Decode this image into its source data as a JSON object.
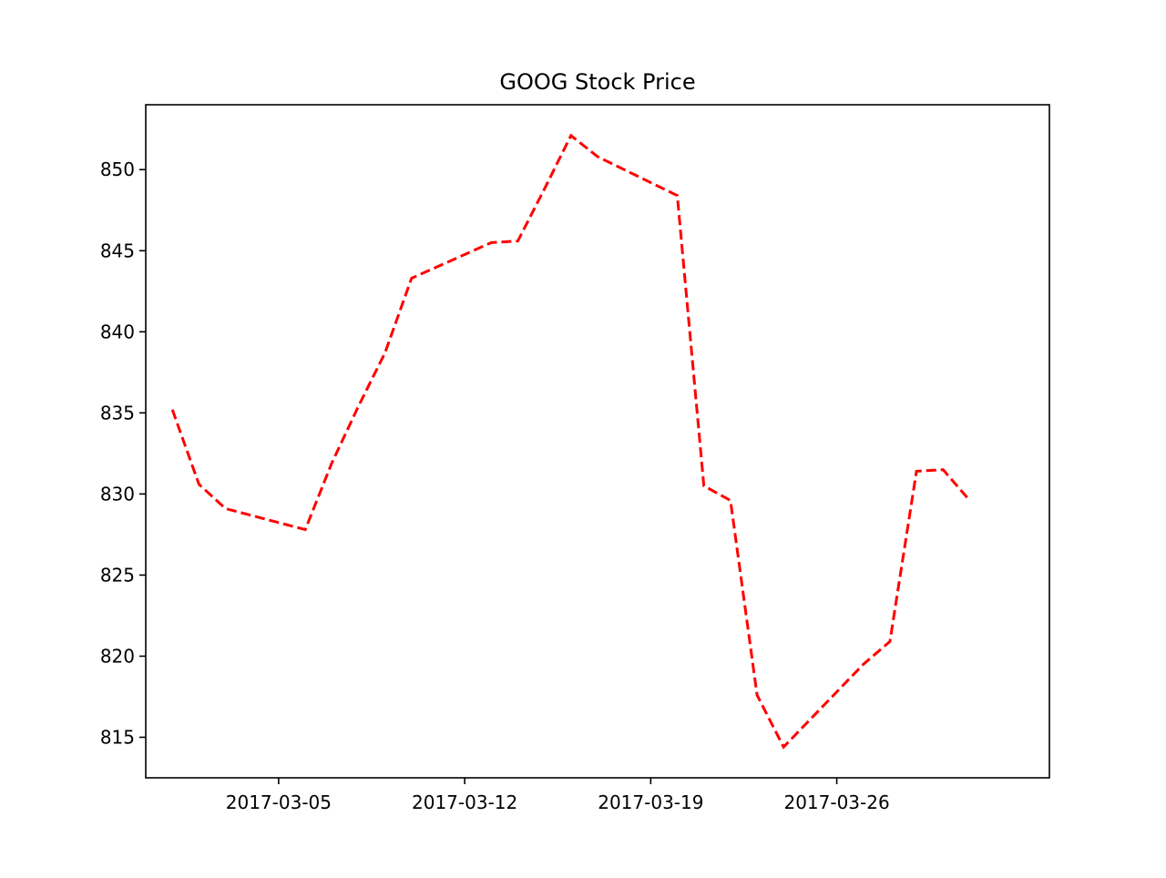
{
  "chart_data": {
    "type": "line",
    "title": "GOOG Stock Price",
    "xlabel": "",
    "ylabel": "",
    "x_tick_labels": [
      "2017-03-05",
      "2017-03-12",
      "2017-03-19",
      "2017-03-26"
    ],
    "y_ticks": [
      815,
      820,
      825,
      830,
      835,
      840,
      845,
      850
    ],
    "xlim": [
      "2017-02-28",
      "2017-04-03"
    ],
    "ylim": [
      812.5,
      854
    ],
    "grid": false,
    "legend": "none",
    "series": [
      {
        "color": "#ff0000",
        "line_style": "dashed",
        "points": [
          {
            "x": "2017-03-01",
            "y": 835.2
          },
          {
            "x": "2017-03-02",
            "y": 830.6
          },
          {
            "x": "2017-03-03",
            "y": 829.1
          },
          {
            "x": "2017-03-06",
            "y": 827.8
          },
          {
            "x": "2017-03-07",
            "y": 831.9
          },
          {
            "x": "2017-03-08",
            "y": 835.4
          },
          {
            "x": "2017-03-09",
            "y": 838.7
          },
          {
            "x": "2017-03-10",
            "y": 843.3
          },
          {
            "x": "2017-03-13",
            "y": 845.5
          },
          {
            "x": "2017-03-14",
            "y": 845.6
          },
          {
            "x": "2017-03-15",
            "y": 848.8
          },
          {
            "x": "2017-03-16",
            "y": 852.1
          },
          {
            "x": "2017-03-17",
            "y": 850.8
          },
          {
            "x": "2017-03-20",
            "y": 848.4
          },
          {
            "x": "2017-03-21",
            "y": 830.5
          },
          {
            "x": "2017-03-22",
            "y": 829.6
          },
          {
            "x": "2017-03-23",
            "y": 817.6
          },
          {
            "x": "2017-03-24",
            "y": 814.4
          },
          {
            "x": "2017-03-27",
            "y": 819.5
          },
          {
            "x": "2017-03-28",
            "y": 820.9
          },
          {
            "x": "2017-03-29",
            "y": 831.4
          },
          {
            "x": "2017-03-30",
            "y": 831.5
          },
          {
            "x": "2017-03-31",
            "y": 829.6
          }
        ]
      }
    ]
  }
}
